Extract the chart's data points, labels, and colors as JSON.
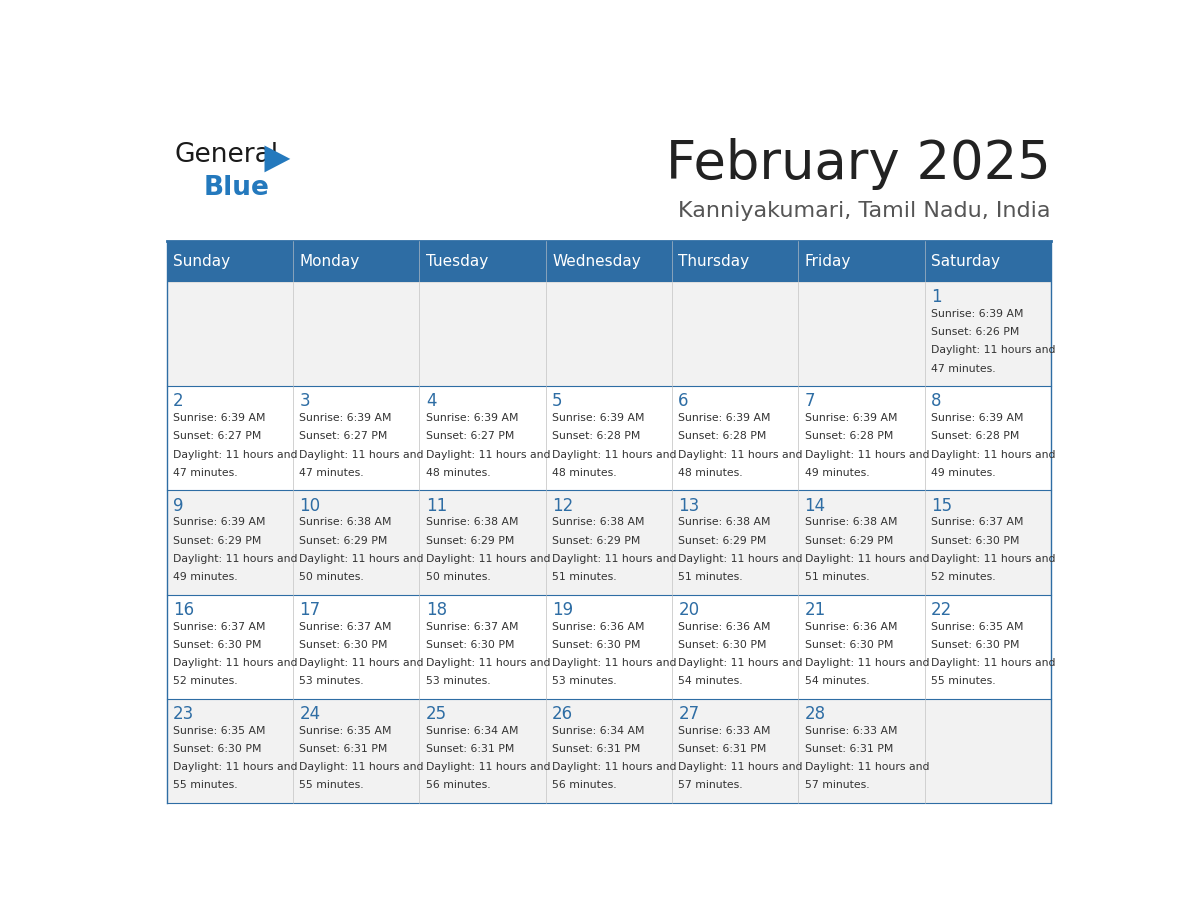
{
  "title": "February 2025",
  "subtitle": "Kanniyakumari, Tamil Nadu, India",
  "header_bg": "#2E6DA4",
  "header_text_color": "#FFFFFF",
  "day_names": [
    "Sunday",
    "Monday",
    "Tuesday",
    "Wednesday",
    "Thursday",
    "Friday",
    "Saturday"
  ],
  "cell_bg_light": "#F2F2F2",
  "cell_bg_white": "#FFFFFF",
  "cell_border_color": "#CCCCCC",
  "separator_color": "#2E6DA4",
  "title_color": "#222222",
  "subtitle_color": "#555555",
  "day_number_color": "#2E6DA4",
  "info_color": "#333333",
  "calendar_data": [
    [
      null,
      null,
      null,
      null,
      null,
      null,
      {
        "day": 1,
        "sunrise": "6:39 AM",
        "sunset": "6:26 PM",
        "daylight": "11 hours and 47 minutes."
      }
    ],
    [
      {
        "day": 2,
        "sunrise": "6:39 AM",
        "sunset": "6:27 PM",
        "daylight": "11 hours and 47 minutes."
      },
      {
        "day": 3,
        "sunrise": "6:39 AM",
        "sunset": "6:27 PM",
        "daylight": "11 hours and 47 minutes."
      },
      {
        "day": 4,
        "sunrise": "6:39 AM",
        "sunset": "6:27 PM",
        "daylight": "11 hours and 48 minutes."
      },
      {
        "day": 5,
        "sunrise": "6:39 AM",
        "sunset": "6:28 PM",
        "daylight": "11 hours and 48 minutes."
      },
      {
        "day": 6,
        "sunrise": "6:39 AM",
        "sunset": "6:28 PM",
        "daylight": "11 hours and 48 minutes."
      },
      {
        "day": 7,
        "sunrise": "6:39 AM",
        "sunset": "6:28 PM",
        "daylight": "11 hours and 49 minutes."
      },
      {
        "day": 8,
        "sunrise": "6:39 AM",
        "sunset": "6:28 PM",
        "daylight": "11 hours and 49 minutes."
      }
    ],
    [
      {
        "day": 9,
        "sunrise": "6:39 AM",
        "sunset": "6:29 PM",
        "daylight": "11 hours and 49 minutes."
      },
      {
        "day": 10,
        "sunrise": "6:38 AM",
        "sunset": "6:29 PM",
        "daylight": "11 hours and 50 minutes."
      },
      {
        "day": 11,
        "sunrise": "6:38 AM",
        "sunset": "6:29 PM",
        "daylight": "11 hours and 50 minutes."
      },
      {
        "day": 12,
        "sunrise": "6:38 AM",
        "sunset": "6:29 PM",
        "daylight": "11 hours and 51 minutes."
      },
      {
        "day": 13,
        "sunrise": "6:38 AM",
        "sunset": "6:29 PM",
        "daylight": "11 hours and 51 minutes."
      },
      {
        "day": 14,
        "sunrise": "6:38 AM",
        "sunset": "6:29 PM",
        "daylight": "11 hours and 51 minutes."
      },
      {
        "day": 15,
        "sunrise": "6:37 AM",
        "sunset": "6:30 PM",
        "daylight": "11 hours and 52 minutes."
      }
    ],
    [
      {
        "day": 16,
        "sunrise": "6:37 AM",
        "sunset": "6:30 PM",
        "daylight": "11 hours and 52 minutes."
      },
      {
        "day": 17,
        "sunrise": "6:37 AM",
        "sunset": "6:30 PM",
        "daylight": "11 hours and 53 minutes."
      },
      {
        "day": 18,
        "sunrise": "6:37 AM",
        "sunset": "6:30 PM",
        "daylight": "11 hours and 53 minutes."
      },
      {
        "day": 19,
        "sunrise": "6:36 AM",
        "sunset": "6:30 PM",
        "daylight": "11 hours and 53 minutes."
      },
      {
        "day": 20,
        "sunrise": "6:36 AM",
        "sunset": "6:30 PM",
        "daylight": "11 hours and 54 minutes."
      },
      {
        "day": 21,
        "sunrise": "6:36 AM",
        "sunset": "6:30 PM",
        "daylight": "11 hours and 54 minutes."
      },
      {
        "day": 22,
        "sunrise": "6:35 AM",
        "sunset": "6:30 PM",
        "daylight": "11 hours and 55 minutes."
      }
    ],
    [
      {
        "day": 23,
        "sunrise": "6:35 AM",
        "sunset": "6:30 PM",
        "daylight": "11 hours and 55 minutes."
      },
      {
        "day": 24,
        "sunrise": "6:35 AM",
        "sunset": "6:31 PM",
        "daylight": "11 hours and 55 minutes."
      },
      {
        "day": 25,
        "sunrise": "6:34 AM",
        "sunset": "6:31 PM",
        "daylight": "11 hours and 56 minutes."
      },
      {
        "day": 26,
        "sunrise": "6:34 AM",
        "sunset": "6:31 PM",
        "daylight": "11 hours and 56 minutes."
      },
      {
        "day": 27,
        "sunrise": "6:33 AM",
        "sunset": "6:31 PM",
        "daylight": "11 hours and 57 minutes."
      },
      {
        "day": 28,
        "sunrise": "6:33 AM",
        "sunset": "6:31 PM",
        "daylight": "11 hours and 57 minutes."
      },
      null
    ]
  ],
  "logo_general_color": "#1A1A1A",
  "logo_blue_color": "#2479BD"
}
